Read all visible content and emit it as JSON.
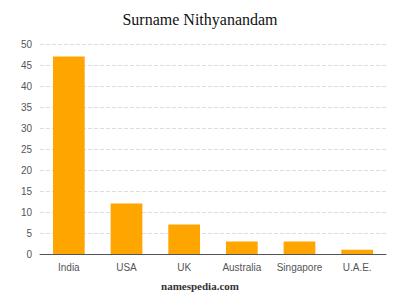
{
  "chart_data": {
    "type": "bar",
    "title": "Surname Nithyanandam",
    "categories": [
      "India",
      "USA",
      "UK",
      "Australia",
      "Singapore",
      "U.A.E."
    ],
    "values": [
      47,
      12,
      7,
      3,
      3,
      1
    ],
    "color": "#FFA500",
    "ylim": [
      0,
      50
    ],
    "yticks": [
      0,
      5,
      10,
      15,
      20,
      25,
      30,
      35,
      40,
      45,
      50
    ],
    "grid": true,
    "footer": "namespedia.com"
  }
}
